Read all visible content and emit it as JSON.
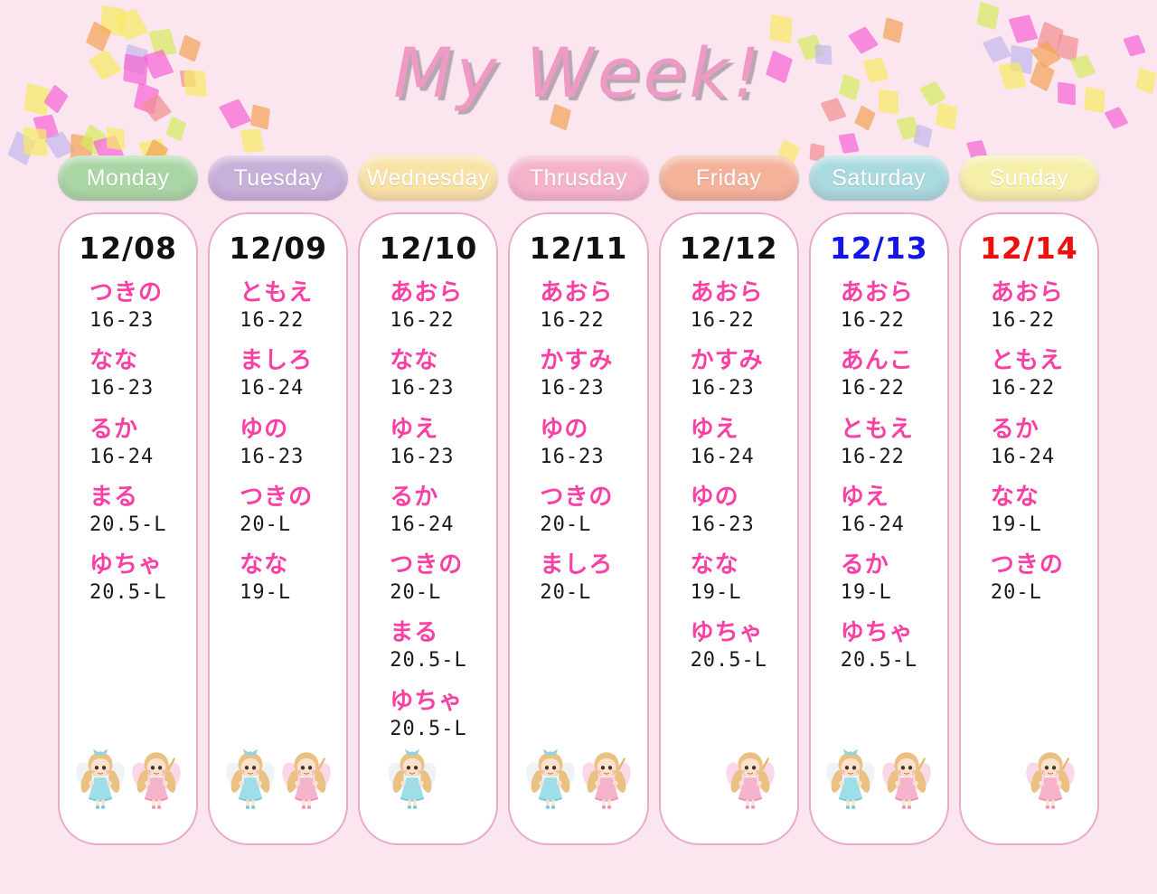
{
  "title": "My Week!",
  "days": [
    {
      "name": "Monday",
      "date": "12/08",
      "date_color": "#111111",
      "pill_color": "#a9d6a4",
      "entries": [
        {
          "name": "つきの",
          "time": "16-23"
        },
        {
          "name": "なな",
          "time": "16-23"
        },
        {
          "name": "るか",
          "time": "16-24"
        },
        {
          "name": "まる",
          "time": "20.5-L"
        },
        {
          "name": "ゆちゃ",
          "time": "20.5-L"
        }
      ],
      "fairies": [
        "blue",
        "pink"
      ]
    },
    {
      "name": "Tuesday",
      "date": "12/09",
      "date_color": "#111111",
      "pill_color": "#c7b0d9",
      "entries": [
        {
          "name": "ともえ",
          "time": "16-22"
        },
        {
          "name": "ましろ",
          "time": "16-24"
        },
        {
          "name": "ゆの",
          "time": "16-23"
        },
        {
          "name": "つきの",
          "time": "20-L"
        },
        {
          "name": "なな",
          "time": "19-L"
        }
      ],
      "fairies": [
        "blue",
        "pink"
      ]
    },
    {
      "name": "Wednesday",
      "date": "12/10",
      "date_color": "#111111",
      "pill_color": "#f9e2a6",
      "entries": [
        {
          "name": "あおら",
          "time": "16-22"
        },
        {
          "name": "なな",
          "time": "16-23"
        },
        {
          "name": "ゆえ",
          "time": "16-23"
        },
        {
          "name": "るか",
          "time": "16-24"
        },
        {
          "name": "つきの",
          "time": "20-L"
        },
        {
          "name": "まる",
          "time": "20.5-L"
        },
        {
          "name": "ゆちゃ",
          "time": "20.5-L"
        }
      ],
      "fairies": [
        "blue"
      ]
    },
    {
      "name": "Thrusday",
      "date": "12/11",
      "date_color": "#111111",
      "pill_color": "#f4b3cb",
      "entries": [
        {
          "name": "あおら",
          "time": "16-22"
        },
        {
          "name": "かすみ",
          "time": "16-23"
        },
        {
          "name": "ゆの",
          "time": "16-23"
        },
        {
          "name": "つきの",
          "time": "20-L"
        },
        {
          "name": "ましろ",
          "time": "20-L"
        }
      ],
      "fairies": [
        "blue",
        "pink"
      ]
    },
    {
      "name": "Friday",
      "date": "12/12",
      "date_color": "#111111",
      "pill_color": "#f4b29a",
      "entries": [
        {
          "name": "あおら",
          "time": "16-22"
        },
        {
          "name": "かすみ",
          "time": "16-23"
        },
        {
          "name": "ゆえ",
          "time": "16-24"
        },
        {
          "name": "ゆの",
          "time": "16-23"
        },
        {
          "name": "なな",
          "time": "19-L"
        },
        {
          "name": "ゆちゃ",
          "time": "20.5-L"
        }
      ],
      "fairies": [
        "pink"
      ]
    },
    {
      "name": "Saturday",
      "date": "12/13",
      "date_color": "#1515e8",
      "pill_color": "#a9dade",
      "entries": [
        {
          "name": "あおら",
          "time": "16-22"
        },
        {
          "name": "あんこ",
          "time": "16-22"
        },
        {
          "name": "ともえ",
          "time": "16-22"
        },
        {
          "name": "ゆえ",
          "time": "16-24"
        },
        {
          "name": "るか",
          "time": "19-L"
        },
        {
          "name": "ゆちゃ",
          "time": "20.5-L"
        }
      ],
      "fairies": [
        "blue",
        "pink"
      ]
    },
    {
      "name": "Sunday",
      "date": "12/14",
      "date_color": "#ee0f0f",
      "pill_color": "#f6efaa",
      "entries": [
        {
          "name": "あおら",
          "time": "16-22"
        },
        {
          "name": "ともえ",
          "time": "16-22"
        },
        {
          "name": "るか",
          "time": "16-24"
        },
        {
          "name": "なな",
          "time": "19-L"
        },
        {
          "name": "つきの",
          "time": "20-L"
        }
      ],
      "fairies": [
        "pink"
      ]
    }
  ],
  "colors": {
    "background": "#fbe6f0",
    "column_bg": "#ffffff",
    "column_border": "#e9aacb",
    "name_pink": "#fb40a4",
    "time_black": "#1a1a1a",
    "title_pink": "#ee9ac4",
    "confetti_palette": [
      "#f566d6",
      "#f6ea66",
      "#d5ec60",
      "#f2a359",
      "#c3b9ec",
      "#f19090"
    ]
  }
}
